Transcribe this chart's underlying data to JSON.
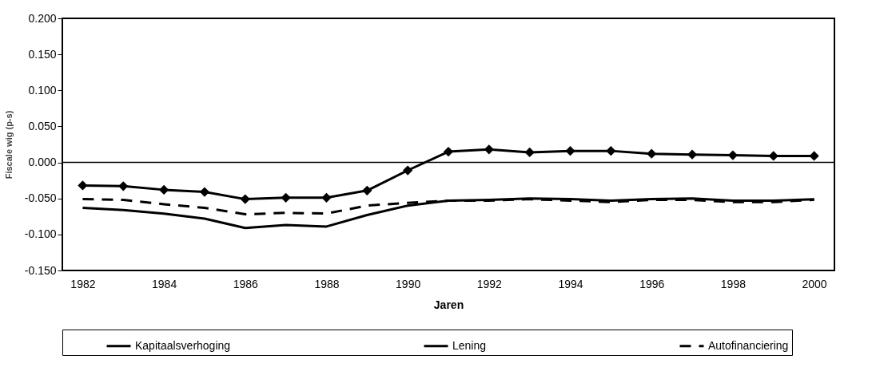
{
  "chart_data": {
    "type": "line",
    "xlabel": "Jaren",
    "ylabel": "Fiscale wig (p-s)",
    "x": [
      1982,
      1983,
      1984,
      1985,
      1986,
      1987,
      1988,
      1989,
      1990,
      1991,
      1992,
      1993,
      1994,
      1995,
      1996,
      1997,
      1998,
      1999,
      2000
    ],
    "series": [
      {
        "name": "Kapitaalsverhoging",
        "color": "#000000",
        "marker": "none",
        "line_style": "solid",
        "values": [
          -0.063,
          -0.066,
          -0.071,
          -0.078,
          -0.091,
          -0.087,
          -0.089,
          -0.073,
          -0.06,
          -0.053,
          -0.052,
          -0.05,
          -0.051,
          -0.053,
          -0.051,
          -0.05,
          -0.053,
          -0.053,
          -0.051
        ]
      },
      {
        "name": "Lening",
        "color": "#000000",
        "marker": "diamond",
        "line_style": "solid",
        "values": [
          -0.032,
          -0.033,
          -0.038,
          -0.041,
          -0.051,
          -0.049,
          -0.049,
          -0.039,
          -0.011,
          0.015,
          0.018,
          0.014,
          0.016,
          0.016,
          0.012,
          0.011,
          0.01,
          0.009,
          0.009
        ]
      },
      {
        "name": "Autofinanciering",
        "color": "#000000",
        "marker": "none",
        "line_style": "dashed",
        "values": [
          -0.051,
          -0.052,
          -0.058,
          -0.063,
          -0.072,
          -0.07,
          -0.071,
          -0.06,
          -0.056,
          -0.053,
          -0.053,
          -0.051,
          -0.053,
          -0.055,
          -0.052,
          -0.052,
          -0.055,
          -0.055,
          -0.052
        ]
      }
    ],
    "xlim": [
      1981.5,
      2000.5
    ],
    "xticks": [
      1982,
      1984,
      1986,
      1988,
      1990,
      1992,
      1994,
      1996,
      1998,
      2000
    ],
    "ylim": [
      -0.15,
      0.2
    ],
    "yticks": [
      {
        "value": -0.15,
        "label": "-0.150"
      },
      {
        "value": -0.1,
        "label": "-0.100"
      },
      {
        "value": -0.05,
        "label": "-0.050"
      },
      {
        "value": 0,
        "label": "0.000"
      },
      {
        "value": 0.05,
        "label": "0.050"
      },
      {
        "value": 0.1,
        "label": "0.100"
      },
      {
        "value": 0.15,
        "label": "0.150"
      },
      {
        "value": 0.2,
        "label": "0.200"
      }
    ],
    "ref_lines": [
      {
        "axis": "y",
        "value": 0,
        "color": "#000000"
      }
    ],
    "grid": false,
    "legend": "bottom"
  }
}
